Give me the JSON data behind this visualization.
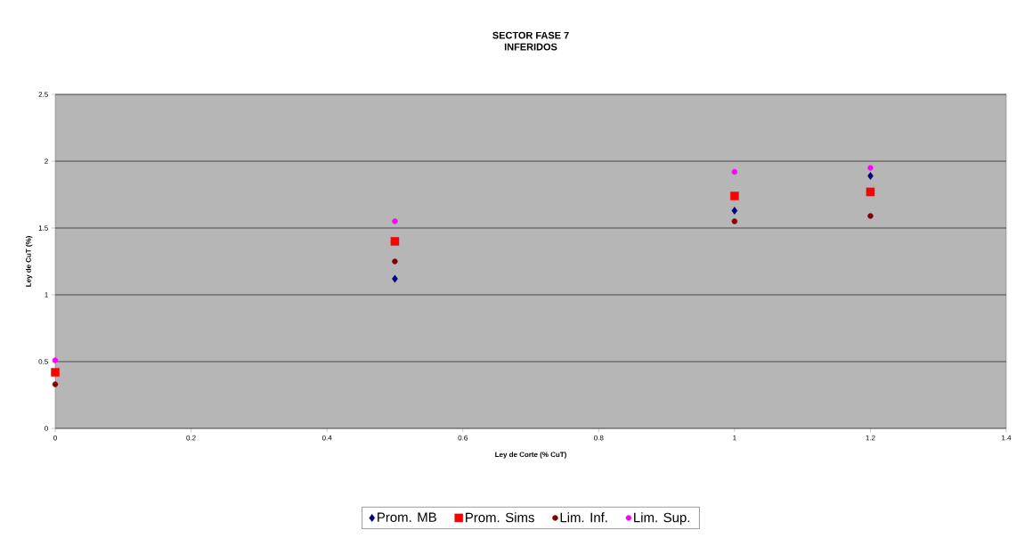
{
  "chart_data": {
    "type": "scatter",
    "title": "SECTOR FASE 7",
    "subtitle": "INFERIDOS",
    "xlabel": "Ley de Corte (% CuT)",
    "ylabel": "Ley de CuT (%)",
    "x": [
      0,
      0.5,
      1,
      1.2
    ],
    "series": [
      {
        "name": "Prom. MB",
        "color": "#000080",
        "marker": "diamond",
        "values": [
          null,
          1.12,
          1.63,
          1.89
        ]
      },
      {
        "name": "Prom. Sims",
        "color": "#ff0000",
        "marker": "square",
        "values": [
          0.42,
          1.4,
          1.74,
          1.77
        ]
      },
      {
        "name": "Lim. Inf.",
        "color": "#800000",
        "marker": "circle",
        "values": [
          0.33,
          1.25,
          1.55,
          1.59
        ]
      },
      {
        "name": "Lim. Sup.",
        "color": "#ff00ff",
        "marker": "circle",
        "values": [
          0.51,
          1.55,
          1.92,
          1.95
        ]
      }
    ],
    "xlim": [
      0,
      1.4
    ],
    "xticks": [
      0,
      0.2,
      0.4,
      0.6,
      0.8,
      1,
      1.2,
      1.4
    ],
    "ylim": [
      0,
      2.5
    ],
    "yticks": [
      0,
      0.5,
      1,
      1.5,
      2,
      2.5
    ],
    "grid": "y",
    "legend": "bottom"
  }
}
